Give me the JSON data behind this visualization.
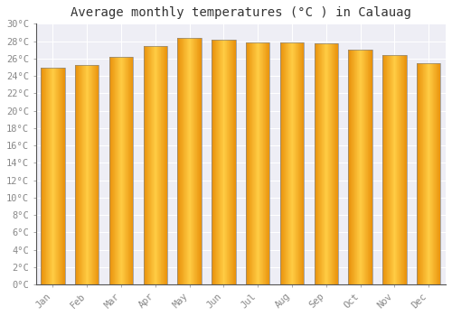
{
  "title": "Average monthly temperatures (°C ) in Calauag",
  "months": [
    "Jan",
    "Feb",
    "Mar",
    "Apr",
    "May",
    "Jun",
    "Jul",
    "Aug",
    "Sep",
    "Oct",
    "Nov",
    "Dec"
  ],
  "values": [
    24.9,
    25.3,
    26.2,
    27.4,
    28.4,
    28.2,
    27.8,
    27.8,
    27.7,
    27.0,
    26.4,
    25.5
  ],
  "ylim": [
    0,
    30
  ],
  "yticks": [
    0,
    2,
    4,
    6,
    8,
    10,
    12,
    14,
    16,
    18,
    20,
    22,
    24,
    26,
    28,
    30
  ],
  "bar_color_left": "#E8900A",
  "bar_color_mid": "#FFC93A",
  "bar_color_right": "#F0A010",
  "bar_edge_color": "#888888",
  "background_color": "#ffffff",
  "plot_bg_color": "#eeeef5",
  "grid_color": "#ffffff",
  "title_fontsize": 10,
  "tick_fontsize": 7.5,
  "tick_color": "#888888",
  "figsize": [
    5.0,
    3.5
  ],
  "dpi": 100
}
